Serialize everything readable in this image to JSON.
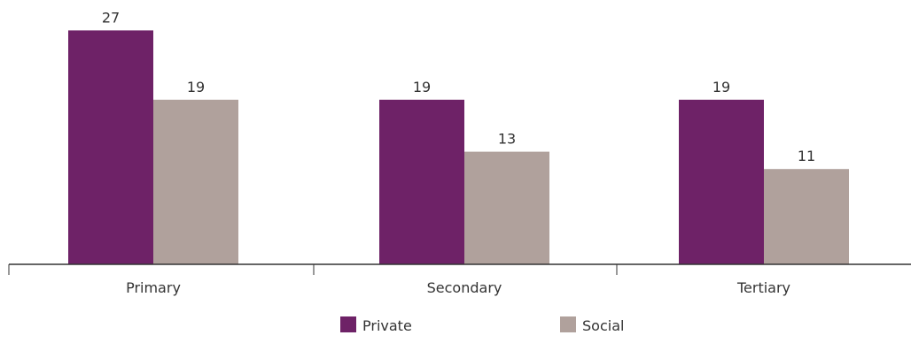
{
  "chart_data": {
    "type": "bar",
    "categories": [
      "Primary",
      "Secondary",
      "Tertiary"
    ],
    "series": [
      {
        "name": "Private",
        "values": [
          27,
          19,
          19
        ],
        "color": "#6e2267"
      },
      {
        "name": "Social",
        "values": [
          19,
          13,
          11
        ],
        "color": "#b0a19c"
      }
    ],
    "title": "",
    "xlabel": "",
    "ylabel": "",
    "ylim": [
      0,
      30
    ],
    "grid": false,
    "legend_position": "bottom"
  }
}
